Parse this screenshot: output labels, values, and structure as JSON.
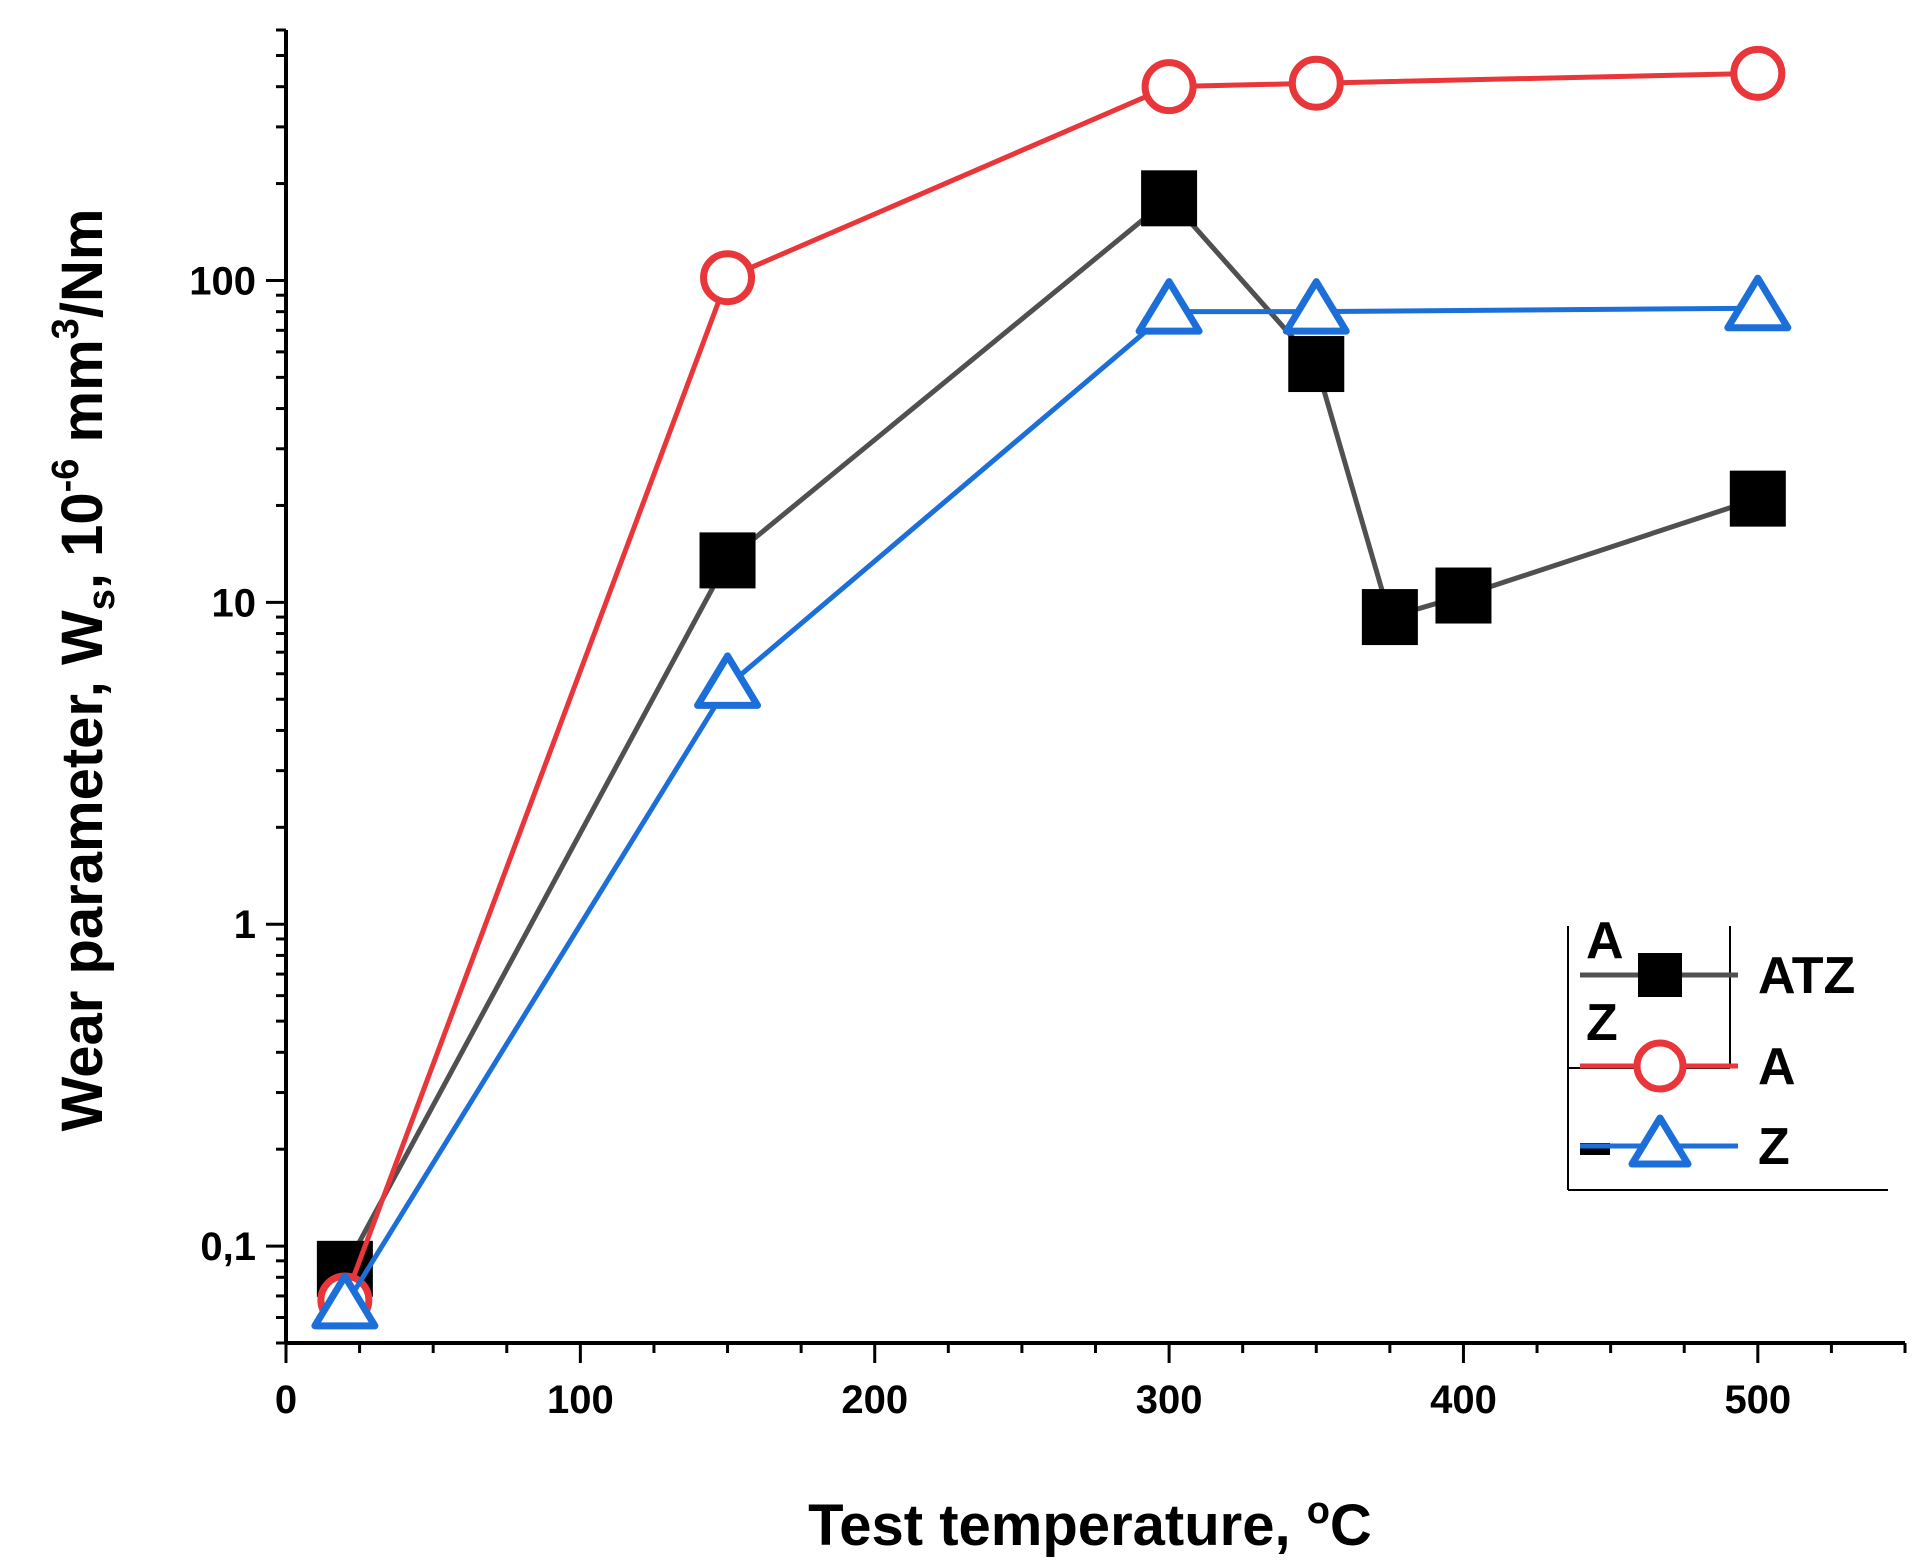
{
  "chart_data": {
    "type": "line",
    "title": "",
    "xlabel": "Test temperature, °C",
    "xlabel_parts": {
      "main": "Test temperature, ",
      "sup": "o",
      "unit": "C"
    },
    "ylabel": "Wear parameter, Ws, 10⁻⁶ mm³/Nm",
    "ylabel_parts": {
      "a": "Wear parameter, W",
      "sub": "s",
      "b": ", 10",
      "sup1": "-6",
      "c": " mm",
      "sup2": "3",
      "d": "/Nm"
    },
    "xlim": [
      0,
      550
    ],
    "ylim": [
      0.05,
      600
    ],
    "yscale": "log",
    "x_ticks": [
      0,
      100,
      200,
      300,
      400,
      500
    ],
    "x_tick_labels": [
      "0",
      "100",
      "200",
      "300",
      "400",
      "500"
    ],
    "x_minor_step": 25,
    "y_ticks": [
      0.1,
      1,
      10,
      100
    ],
    "y_tick_labels": [
      "0,1",
      "1",
      "10",
      "100"
    ],
    "legend_position": "bottom-right",
    "series": [
      {
        "name": "ATZ",
        "color": "#505050",
        "marker_color": "#000000",
        "marker": "square",
        "x": [
          20,
          150,
          300,
          350,
          375,
          400,
          500
        ],
        "y": [
          0.085,
          13.5,
          180,
          55,
          9,
          10.5,
          21
        ]
      },
      {
        "name": "A",
        "color": "#e8363a",
        "marker": "circle",
        "x": [
          20,
          150,
          300,
          350,
          500
        ],
        "y": [
          0.068,
          102,
          400,
          410,
          440
        ]
      },
      {
        "name": "Z",
        "color": "#1c6fd8",
        "marker": "triangle",
        "x": [
          20,
          150,
          300,
          350,
          500
        ],
        "y": [
          0.065,
          5.5,
          80,
          80,
          82
        ]
      }
    ],
    "legend_artifacts": [
      "A",
      "Z"
    ]
  }
}
